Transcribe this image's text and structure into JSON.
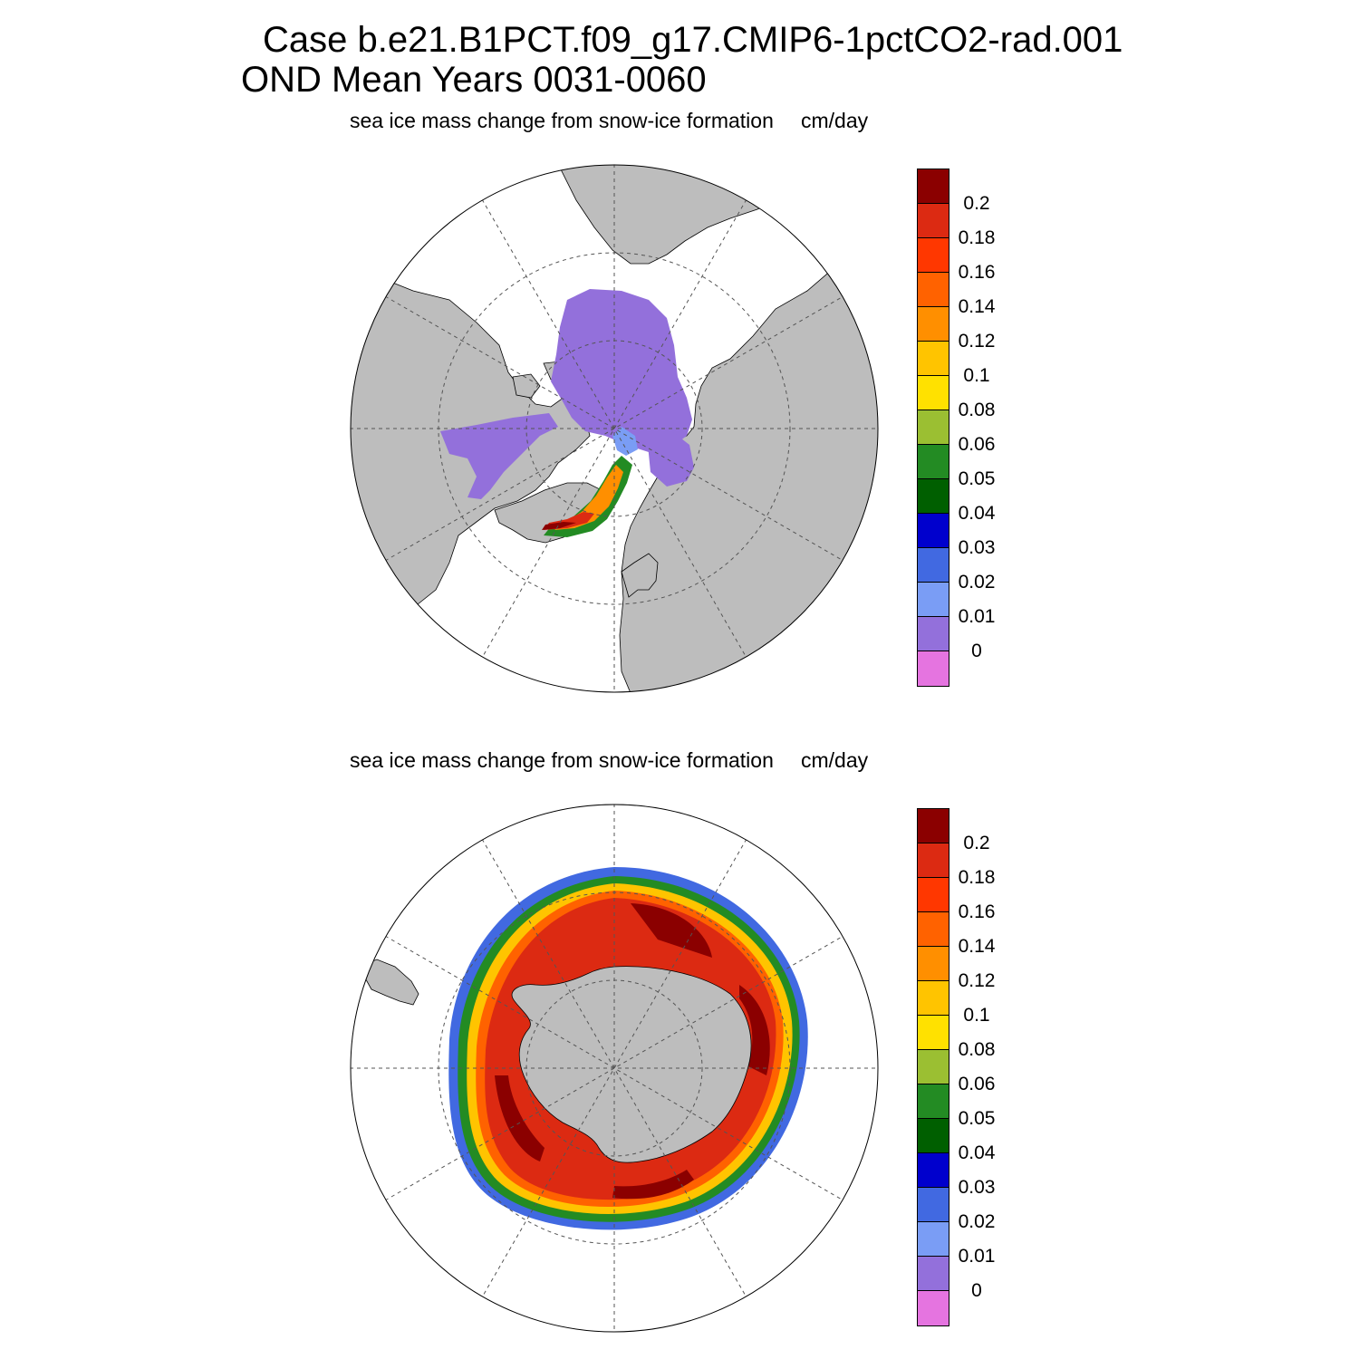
{
  "title": {
    "line1": "Case b.e21.B1PCT.f09_g17.CMIP6-1pctCO2-rad.001",
    "line2": "OND Mean   Years 0031-0060"
  },
  "panels": [
    {
      "id": "north",
      "hemisphere": "Northern Hemisphere polar stereographic",
      "label": "sea ice mass change from snow-ice formation",
      "units": "cm/day"
    },
    {
      "id": "south",
      "hemisphere": "Southern Hemisphere polar stereographic",
      "label": "sea ice mass change from snow-ice formation",
      "units": "cm/day"
    }
  ],
  "colorbar": {
    "labels": [
      "0.2",
      "0.18",
      "0.16",
      "0.14",
      "0.12",
      "0.1",
      "0.08",
      "0.06",
      "0.05",
      "0.04",
      "0.03",
      "0.02",
      "0.01",
      "0"
    ],
    "colors_top_to_bottom": [
      "#8b0000",
      "#dc2a12",
      "#ff3700",
      "#ff6200",
      "#ff8f00",
      "#ffc400",
      "#ffe100",
      "#9bbf32",
      "#238b23",
      "#005f00",
      "#0000cd",
      "#4169e1",
      "#7a9df5",
      "#9370db",
      "#e574e0"
    ]
  },
  "colors": {
    "land": "#bdbdbd",
    "ocean": "#ffffff",
    "grid": "#555555"
  }
}
